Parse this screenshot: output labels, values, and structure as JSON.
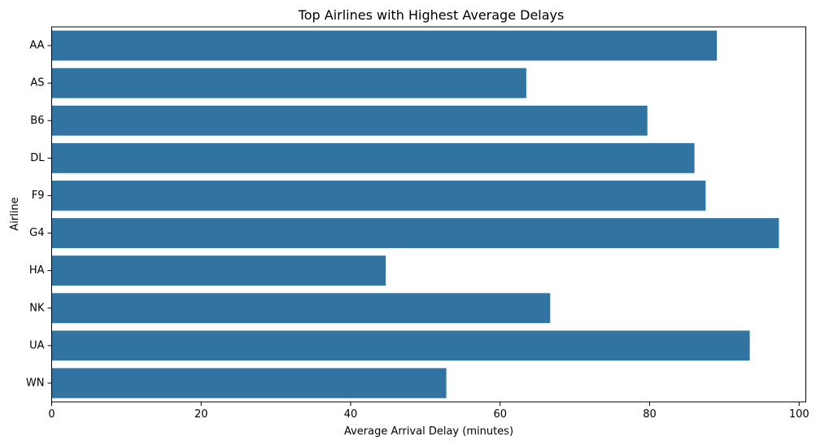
{
  "chart_data": {
    "type": "bar",
    "orientation": "horizontal",
    "title": "Top Airlines with Highest Average Delays",
    "xlabel": "Average Arrival Delay (minutes)",
    "ylabel": "Airline",
    "categories": [
      "AA",
      "AS",
      "B6",
      "DL",
      "F9",
      "G4",
      "HA",
      "NK",
      "UA",
      "WN"
    ],
    "values": [
      89.0,
      63.5,
      79.7,
      86.0,
      87.5,
      97.3,
      44.7,
      66.7,
      93.4,
      52.8
    ],
    "xlim": [
      0,
      100.9
    ],
    "xticks": [
      0,
      20,
      40,
      60,
      80,
      100
    ],
    "xtick_labels": [
      "0",
      "20",
      "40",
      "60",
      "80",
      "100"
    ],
    "grid": false,
    "bar_color": "#3274a1"
  }
}
